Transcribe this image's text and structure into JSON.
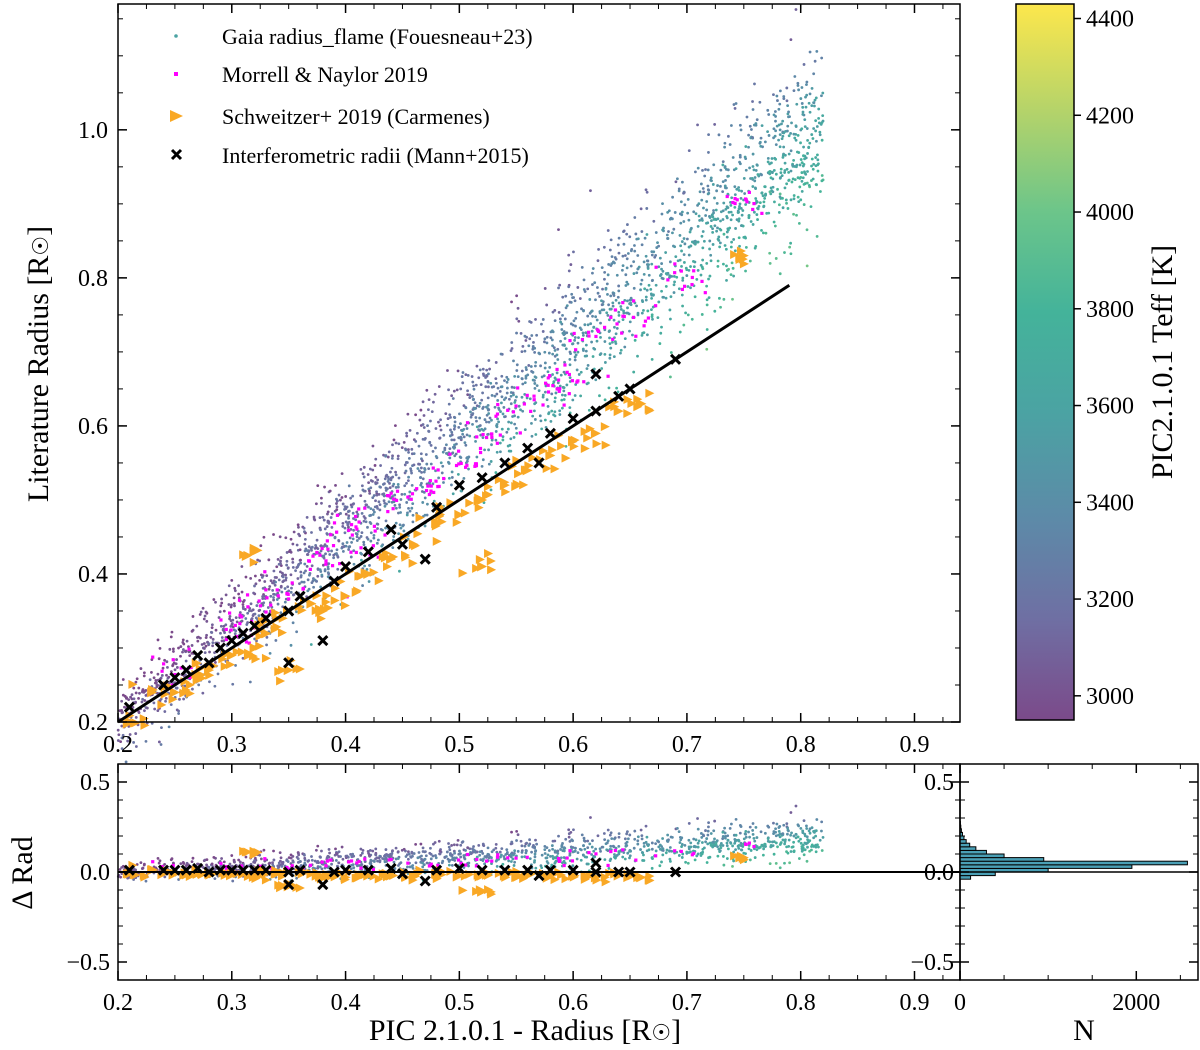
{
  "chart_data": [
    {
      "id": "main",
      "type": "scatter",
      "xlabel": "",
      "ylabel": "Literature Radius [R",
      "ylabel_suffix": "]",
      "xlim": [
        0.2,
        0.94
      ],
      "ylim": [
        0.2,
        1.17
      ],
      "x_ticks": [
        0.2,
        0.3,
        0.4,
        0.5,
        0.6,
        0.7,
        0.8,
        0.9
      ],
      "x_tick_labels": [
        "0.2",
        "0.3",
        "0.4",
        "0.5",
        "0.6",
        "0.7",
        "0.8",
        "0.9"
      ],
      "y_ticks": [
        0.2,
        0.4,
        0.6,
        0.8,
        1.0
      ],
      "y_tick_labels": [
        "0.2",
        "0.4",
        "0.6",
        "0.8",
        "1.0"
      ],
      "legend_position": "top-left",
      "series": [
        {
          "name": "Gaia radius_flame (Fouesneau+23)",
          "marker": "dot",
          "color_by": "teff",
          "trend": {
            "x_range": [
              0.2,
              0.82
            ],
            "offset_at_x0": 0.02,
            "offset_at_x1": 0.2,
            "scatter": 0.06
          }
        },
        {
          "name": "Morrell & Naylor 2019",
          "marker": "square",
          "color": "#ff00ff",
          "points": [
            [
              0.25,
              0.27
            ],
            [
              0.3,
              0.32
            ],
            [
              0.32,
              0.35
            ],
            [
              0.35,
              0.38
            ],
            [
              0.38,
              0.42
            ],
            [
              0.4,
              0.44
            ],
            [
              0.42,
              0.46
            ],
            [
              0.45,
              0.5
            ],
            [
              0.47,
              0.52
            ],
            [
              0.5,
              0.55
            ],
            [
              0.52,
              0.58
            ],
            [
              0.55,
              0.62
            ],
            [
              0.58,
              0.65
            ],
            [
              0.6,
              0.67
            ],
            [
              0.62,
              0.72
            ],
            [
              0.65,
              0.75
            ],
            [
              0.7,
              0.8
            ],
            [
              0.75,
              0.9
            ]
          ]
        },
        {
          "name": "Schweitzer+ 2019 (Carmenes)",
          "marker": "triangle-right",
          "color": "#f9a825",
          "points": [
            [
              0.21,
              0.2
            ],
            [
              0.23,
              0.24
            ],
            [
              0.25,
              0.24
            ],
            [
              0.27,
              0.26
            ],
            [
              0.28,
              0.27
            ],
            [
              0.3,
              0.29
            ],
            [
              0.32,
              0.3
            ],
            [
              0.33,
              0.32
            ],
            [
              0.32,
              0.43
            ],
            [
              0.34,
              0.34
            ],
            [
              0.35,
              0.27
            ],
            [
              0.37,
              0.36
            ],
            [
              0.38,
              0.35
            ],
            [
              0.4,
              0.37
            ],
            [
              0.42,
              0.4
            ],
            [
              0.44,
              0.42
            ],
            [
              0.46,
              0.44
            ],
            [
              0.48,
              0.47
            ],
            [
              0.5,
              0.48
            ],
            [
              0.52,
              0.41
            ],
            [
              0.52,
              0.5
            ],
            [
              0.54,
              0.52
            ],
            [
              0.56,
              0.54
            ],
            [
              0.58,
              0.56
            ],
            [
              0.6,
              0.58
            ],
            [
              0.62,
              0.59
            ],
            [
              0.64,
              0.62
            ],
            [
              0.66,
              0.63
            ],
            [
              0.75,
              0.83
            ]
          ]
        },
        {
          "name": "Interferometric radii (Mann+2015)",
          "marker": "x",
          "color": "#000000",
          "points": [
            [
              0.21,
              0.22
            ],
            [
              0.24,
              0.25
            ],
            [
              0.25,
              0.26
            ],
            [
              0.26,
              0.27
            ],
            [
              0.27,
              0.29
            ],
            [
              0.28,
              0.28
            ],
            [
              0.29,
              0.3
            ],
            [
              0.3,
              0.31
            ],
            [
              0.31,
              0.32
            ],
            [
              0.32,
              0.33
            ],
            [
              0.33,
              0.34
            ],
            [
              0.35,
              0.28
            ],
            [
              0.35,
              0.35
            ],
            [
              0.36,
              0.37
            ],
            [
              0.38,
              0.31
            ],
            [
              0.39,
              0.39
            ],
            [
              0.4,
              0.41
            ],
            [
              0.42,
              0.43
            ],
            [
              0.44,
              0.46
            ],
            [
              0.45,
              0.44
            ],
            [
              0.47,
              0.42
            ],
            [
              0.48,
              0.49
            ],
            [
              0.5,
              0.52
            ],
            [
              0.52,
              0.53
            ],
            [
              0.54,
              0.55
            ],
            [
              0.56,
              0.57
            ],
            [
              0.57,
              0.55
            ],
            [
              0.58,
              0.59
            ],
            [
              0.6,
              0.61
            ],
            [
              0.62,
              0.62
            ],
            [
              0.62,
              0.67
            ],
            [
              0.64,
              0.64
            ],
            [
              0.65,
              0.65
            ],
            [
              0.69,
              0.69
            ]
          ]
        }
      ],
      "reference_line": {
        "x": [
          0.2,
          0.79
        ],
        "y": [
          0.2,
          0.79
        ]
      }
    },
    {
      "id": "residual",
      "type": "scatter",
      "xlabel": "PIC 2.1.0.1 - Radius [R",
      "xlabel_suffix": "]",
      "ylabel": "Δ Rad",
      "xlim": [
        0.2,
        0.94
      ],
      "ylim": [
        -0.6,
        0.6
      ],
      "x_ticks": [
        0.2,
        0.3,
        0.4,
        0.5,
        0.6,
        0.7,
        0.8,
        0.9
      ],
      "x_tick_labels": [
        "0.2",
        "0.3",
        "0.4",
        "0.5",
        "0.6",
        "0.7",
        "0.8",
        "0.9"
      ],
      "y_ticks": [
        -0.5,
        0.0,
        0.5
      ],
      "y_tick_labels": [
        "−0.5",
        "0.0",
        "0.5"
      ],
      "reference_line": {
        "y": 0.0
      }
    },
    {
      "id": "histogram",
      "type": "bar",
      "orientation": "horizontal",
      "xlabel": "N",
      "xlim": [
        0,
        2700
      ],
      "ylim": [
        -0.6,
        0.6
      ],
      "x_ticks": [
        0,
        2000
      ],
      "x_tick_labels": [
        "0",
        "2000"
      ],
      "y_ticks": [
        -0.5,
        0.0,
        0.5
      ],
      "y_tick_labels": [
        "−0.5",
        "0.0",
        "0.5"
      ],
      "bins": [
        {
          "center": -0.03,
          "count": 120
        },
        {
          "center": -0.01,
          "count": 400
        },
        {
          "center": 0.01,
          "count": 1000
        },
        {
          "center": 0.03,
          "count": 1950
        },
        {
          "center": 0.05,
          "count": 2580
        },
        {
          "center": 0.07,
          "count": 950
        },
        {
          "center": 0.09,
          "count": 500
        },
        {
          "center": 0.11,
          "count": 300
        },
        {
          "center": 0.13,
          "count": 180
        },
        {
          "center": 0.15,
          "count": 110
        },
        {
          "center": 0.17,
          "count": 70
        },
        {
          "center": 0.19,
          "count": 45
        },
        {
          "center": 0.21,
          "count": 28
        },
        {
          "center": 0.23,
          "count": 16
        },
        {
          "center": 0.25,
          "count": 9
        },
        {
          "center": 0.27,
          "count": 5
        }
      ]
    },
    {
      "id": "colorbar",
      "type": "colorbar",
      "label": "PIC2.1.0.1 Teff [K]",
      "range": [
        2950,
        4430
      ],
      "ticks": [
        3000,
        3200,
        3400,
        3600,
        3800,
        4000,
        4200,
        4400
      ],
      "tick_labels": [
        "3000",
        "3200",
        "3400",
        "3600",
        "3800",
        "4000",
        "4200",
        "4400"
      ],
      "colors": [
        "#7b4a8a",
        "#6f6fa3",
        "#5d8aa8",
        "#4ba3a3",
        "#44b39a",
        "#6cc58a",
        "#b4d36a",
        "#fde74c"
      ]
    }
  ]
}
